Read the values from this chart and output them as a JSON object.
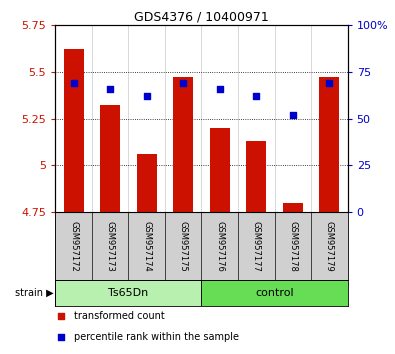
{
  "title": "GDS4376 / 10400971",
  "samples": [
    "GSM957172",
    "GSM957173",
    "GSM957174",
    "GSM957175",
    "GSM957176",
    "GSM957177",
    "GSM957178",
    "GSM957179"
  ],
  "red_values": [
    5.62,
    5.32,
    5.06,
    5.47,
    5.2,
    5.13,
    4.8,
    5.47
  ],
  "blue_percentiles": [
    69,
    66,
    62,
    69,
    66,
    62,
    52,
    69
  ],
  "ylim_left": [
    4.75,
    5.75
  ],
  "ylim_right": [
    0,
    100
  ],
  "yticks_left": [
    4.75,
    5.0,
    5.25,
    5.5,
    5.75
  ],
  "yticks_right": [
    0,
    25,
    50,
    75,
    100
  ],
  "bar_color": "#cc1100",
  "dot_color": "#0000cc",
  "bar_bottom": 4.75,
  "plot_bg": "#ffffff",
  "sample_box_color": "#d0d0d0",
  "group1_color": "#b8f0b0",
  "group2_color": "#66dd55",
  "legend_red": "transformed count",
  "legend_blue": "percentile rank within the sample",
  "strain_label": "strain",
  "group1_label": "Ts65Dn",
  "group2_label": "control",
  "title_fontsize": 9,
  "tick_fontsize": 8,
  "sample_fontsize": 6,
  "group_fontsize": 8,
  "legend_fontsize": 7
}
